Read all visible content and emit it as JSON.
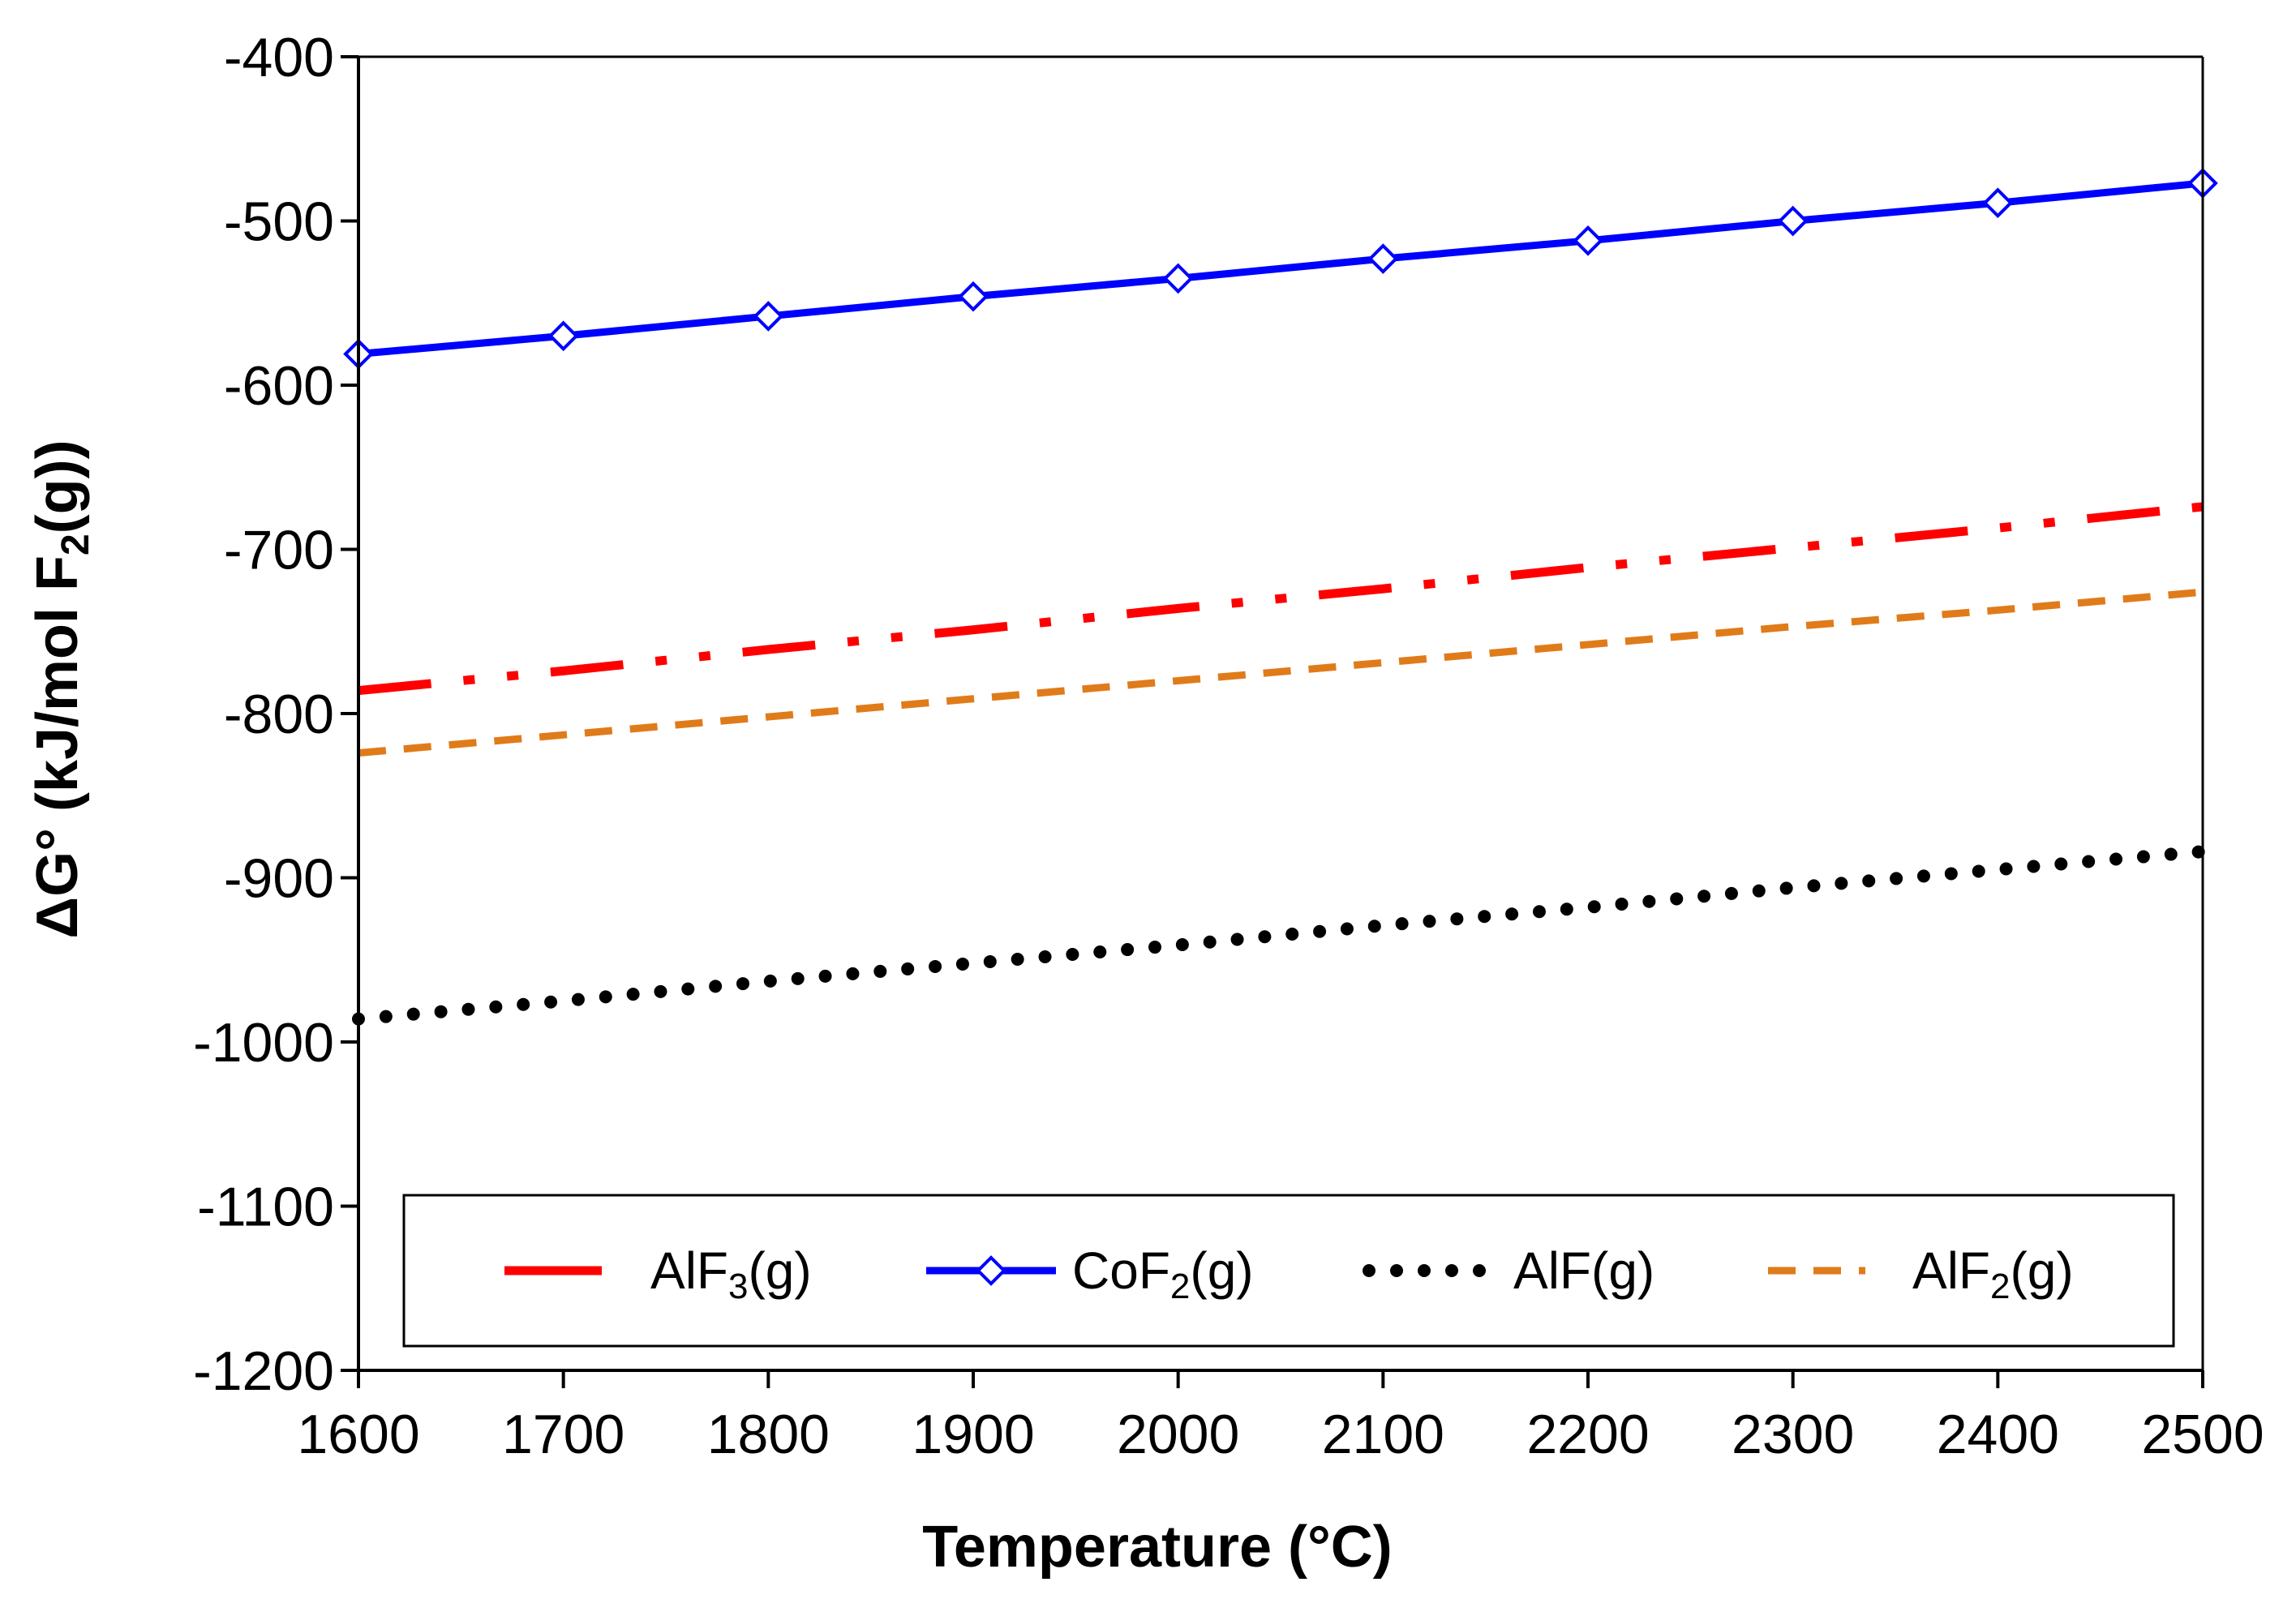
{
  "chart_data": {
    "type": "line",
    "xlabel": "Temperature (°C)",
    "ylabel": {
      "prefix": "ΔG° (kJ/mol F",
      "sub": "2",
      "suffix": "(g))"
    },
    "xlim": [
      1600,
      2500
    ],
    "ylim": [
      -1200,
      -400
    ],
    "xticks": [
      1600,
      1700,
      1800,
      1900,
      2000,
      2100,
      2200,
      2300,
      2400,
      2500
    ],
    "yticks": [
      -400,
      -500,
      -600,
      -700,
      -800,
      -900,
      -1000,
      -1100,
      -1200
    ],
    "grid": false,
    "legend_position": "bottom",
    "x": [
      1600,
      1700,
      1800,
      1900,
      2000,
      2100,
      2200,
      2300,
      2400,
      2500
    ],
    "series": [
      {
        "key": "alf3",
        "name": {
          "base": "AlF",
          "sub": "3",
          "suffix": "(g)"
        },
        "color": "#ff0000",
        "style": "dash-dot-dot",
        "values": [
          -786,
          -774,
          -761,
          -749,
          -736,
          -724,
          -711,
          -699,
          -687,
          -674
        ]
      },
      {
        "key": "cof2",
        "name": {
          "base": "CoF",
          "sub": "2",
          "suffix": "(g)"
        },
        "color": "#0000ff",
        "style": "solid-diamond",
        "values": [
          -581,
          -570,
          -558,
          -546,
          -535,
          -523,
          -512,
          -500,
          -489,
          -477
        ]
      },
      {
        "key": "alf",
        "name": {
          "base": "AlF",
          "sub": "",
          "suffix": "(g)"
        },
        "color": "#000000",
        "style": "dotted",
        "values": [
          -986,
          -975,
          -963,
          -952,
          -941,
          -929,
          -918,
          -906,
          -895,
          -884
        ]
      },
      {
        "key": "alf2",
        "name": {
          "base": "AlF",
          "sub": "2",
          "suffix": "(g)"
        },
        "color": "#e07b1a",
        "style": "dashed",
        "values": [
          -824,
          -813,
          -802,
          -791,
          -780,
          -769,
          -758,
          -747,
          -737,
          -726
        ]
      }
    ]
  }
}
